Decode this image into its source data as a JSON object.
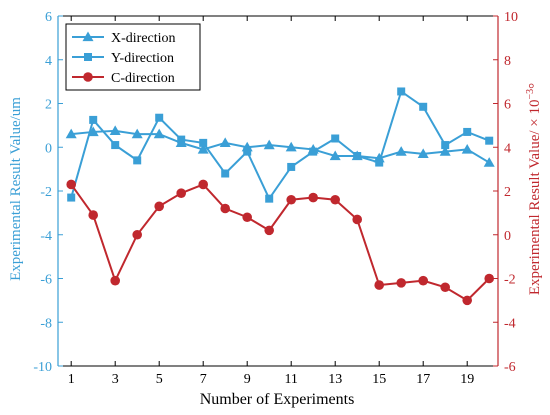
{
  "chart_data": {
    "type": "line",
    "xlabel": "Number of Experiments",
    "ylabel_left": "Experimental Result Value/um",
    "ylabel_right": "Experimental Result Value/ × 10",
    "ylabel_right_exp": "−3",
    "ylabel_right_unit": "°",
    "xlim": [
      0.4,
      20.4
    ],
    "ylim_left": [
      -10,
      6
    ],
    "ylim_right": [
      -6,
      10
    ],
    "x_ticks": [
      1,
      3,
      5,
      7,
      9,
      11,
      13,
      15,
      17,
      19
    ],
    "x_tick_labels": [
      "1",
      "3",
      "5",
      "7",
      "9",
      "11",
      "13",
      "15",
      "17",
      "19"
    ],
    "yl_ticks": [
      -10,
      -8,
      -6,
      -4,
      -2,
      0,
      2,
      4,
      6
    ],
    "yl_tick_labels": [
      "-10",
      "-8",
      "-6",
      "-4",
      "-2",
      "0",
      "2",
      "4",
      "6"
    ],
    "yr_ticks": [
      -6,
      -4,
      -2,
      0,
      2,
      4,
      6,
      8,
      10
    ],
    "yr_tick_labels": [
      "-6",
      "-4",
      "-2",
      "0",
      "2",
      "4",
      "6",
      "8",
      "10"
    ],
    "legend_position": "top-left",
    "colors": {
      "left_axis": "#3a9fd6",
      "right_axis": "#c0282e",
      "frame": "#000000"
    },
    "x": [
      1,
      2,
      3,
      4,
      5,
      6,
      7,
      8,
      9,
      10,
      11,
      12,
      13,
      14,
      15,
      16,
      17,
      18,
      19,
      20
    ],
    "series": [
      {
        "name": "X-direction",
        "axis": "left",
        "marker": "triangle",
        "color": "#3a9fd6",
        "values": [
          0.6,
          0.7,
          0.75,
          0.6,
          0.6,
          0.2,
          -0.1,
          0.2,
          0.0,
          0.1,
          0.0,
          -0.1,
          -0.4,
          -0.4,
          -0.5,
          -0.2,
          -0.3,
          -0.2,
          -0.1,
          -0.7
        ]
      },
      {
        "name": "Y-direction",
        "axis": "left",
        "marker": "square",
        "color": "#3a9fd6",
        "values": [
          -2.3,
          1.25,
          0.1,
          -0.6,
          1.35,
          0.35,
          0.2,
          -1.2,
          -0.2,
          -2.35,
          -0.9,
          -0.2,
          0.4,
          -0.4,
          -0.7,
          2.55,
          1.85,
          0.1,
          0.7,
          0.3
        ]
      },
      {
        "name": "C-direction",
        "axis": "right",
        "marker": "circle",
        "color": "#c0282e",
        "values": [
          2.3,
          0.9,
          -2.1,
          0.0,
          1.3,
          1.9,
          2.3,
          1.2,
          0.8,
          0.2,
          1.6,
          1.7,
          1.6,
          0.7,
          -2.3,
          -2.2,
          -2.1,
          -2.4,
          -3.0,
          -2.0
        ]
      }
    ]
  }
}
